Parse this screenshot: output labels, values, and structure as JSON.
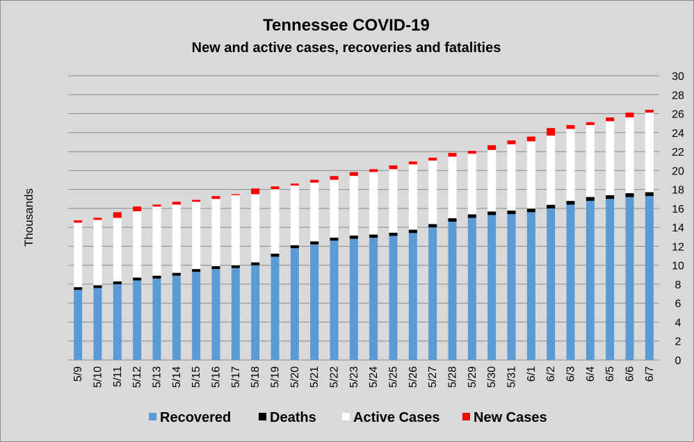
{
  "chart_data": {
    "type": "bar",
    "stacked": true,
    "title": "Tennessee COVID-19",
    "subtitle": "New and active cases, recoveries and fatalities",
    "ylabel": "Thousands",
    "ylim": [
      0,
      30
    ],
    "yticks": [
      0,
      2,
      4,
      6,
      8,
      10,
      12,
      14,
      16,
      18,
      20,
      22,
      24,
      26,
      28,
      30
    ],
    "y_axis_position": "right",
    "grid": true,
    "legend_position": "bottom",
    "categories": [
      "5/9",
      "5/10",
      "5/11",
      "5/12",
      "5/13",
      "5/14",
      "5/15",
      "5/16",
      "5/17",
      "5/18",
      "5/19",
      "5/20",
      "5/21",
      "5/22",
      "5/23",
      "5/24",
      "5/25",
      "5/26",
      "5/27",
      "5/28",
      "5/29",
      "5/30",
      "5/31",
      "6/1",
      "6/2",
      "6/3",
      "6/4",
      "6/5",
      "6/6",
      "6/7"
    ],
    "series": [
      {
        "name": "Recovered",
        "color": "#5b9bd5",
        "values": [
          7.4,
          7.6,
          8.0,
          8.4,
          8.6,
          8.9,
          9.3,
          9.6,
          9.7,
          10.0,
          10.9,
          11.8,
          12.2,
          12.6,
          12.8,
          12.9,
          13.1,
          13.4,
          14.0,
          14.6,
          15.0,
          15.3,
          15.4,
          15.6,
          16.0,
          16.4,
          16.8,
          17.0,
          17.2,
          17.3
        ]
      },
      {
        "name": "Deaths",
        "color": "#000000",
        "values": [
          0.29,
          0.29,
          0.3,
          0.3,
          0.3,
          0.3,
          0.3,
          0.3,
          0.3,
          0.3,
          0.32,
          0.32,
          0.32,
          0.32,
          0.33,
          0.34,
          0.34,
          0.35,
          0.35,
          0.36,
          0.37,
          0.37,
          0.37,
          0.38,
          0.38,
          0.39,
          0.4,
          0.4,
          0.41,
          0.41
        ]
      },
      {
        "name": "Active Cases",
        "color": "#ffffff",
        "values": [
          6.8,
          6.9,
          6.7,
          7.0,
          7.3,
          7.2,
          7.1,
          7.1,
          7.4,
          7.2,
          6.8,
          6.3,
          6.2,
          6.1,
          6.3,
          6.6,
          6.7,
          6.9,
          6.7,
          6.5,
          6.4,
          6.5,
          7.0,
          7.1,
          7.3,
          7.6,
          7.6,
          7.8,
          8.0,
          8.4
        ]
      },
      {
        "name": "New Cases",
        "color": "#ff0000",
        "values": [
          0.25,
          0.22,
          0.6,
          0.5,
          0.2,
          0.3,
          0.2,
          0.3,
          0.1,
          0.6,
          0.3,
          0.2,
          0.3,
          0.4,
          0.4,
          0.3,
          0.4,
          0.3,
          0.3,
          0.4,
          0.3,
          0.5,
          0.4,
          0.5,
          0.8,
          0.4,
          0.3,
          0.4,
          0.5,
          0.3
        ]
      }
    ]
  }
}
